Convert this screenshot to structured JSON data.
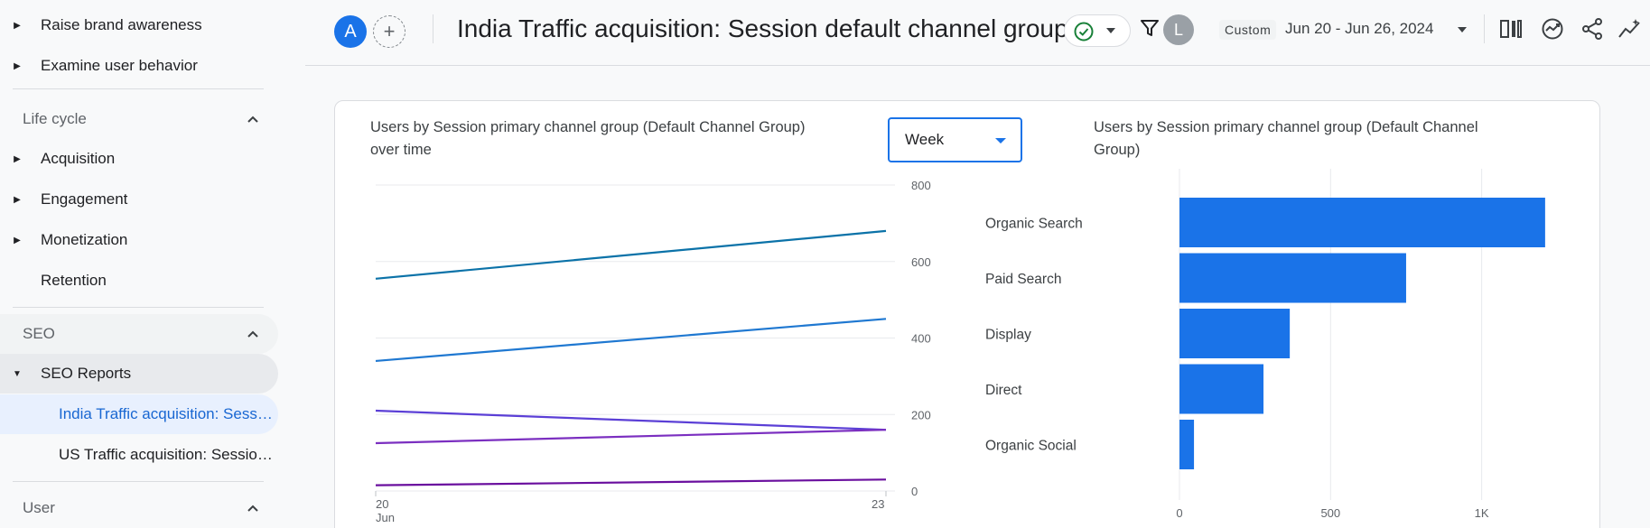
{
  "sidebar": {
    "top_items": [
      {
        "label": "Raise brand awareness"
      },
      {
        "label": "Examine user behavior"
      }
    ],
    "lifecycle": {
      "title": "Life cycle",
      "items": [
        {
          "label": "Acquisition"
        },
        {
          "label": "Engagement"
        },
        {
          "label": "Monetization"
        },
        {
          "label": "Retention"
        }
      ]
    },
    "seo": {
      "title": "SEO",
      "reports_label": "SEO Reports",
      "sub_items": [
        {
          "label": "India Traffic acquisition: Session default channel group",
          "active": true
        },
        {
          "label": "US Traffic acquisition: Session default channel group",
          "active": false
        }
      ]
    },
    "user": {
      "title": "User"
    }
  },
  "header": {
    "avatar_initial": "A",
    "add_symbol": "+",
    "title": "India Traffic acquisition: Session default channel group",
    "user_initial": "L",
    "custom_label": "Custom",
    "date_range": "Jun 20 - Jun 26, 2024",
    "icons": [
      "check-circle-icon",
      "filter-icon",
      "compare-icon",
      "insights-icon",
      "share-icon",
      "trend-icon"
    ]
  },
  "colors": {
    "accent": "#1a73e8",
    "active_bg": "#e8f0fe",
    "bar": "#1a73e8",
    "check": "#188038"
  },
  "line_chart": {
    "title_line1": "Users by Session primary channel group (Default Channel Group)",
    "title_line2": "over time",
    "granularity": "Week"
  },
  "bar_chart": {
    "title_line1": "Users by Session primary channel group (Default Channel",
    "title_line2": "Group)"
  },
  "chart_data": [
    {
      "type": "line",
      "title": "Users by Session primary channel group (Default Channel Group) over time",
      "x": [
        "20 Jun",
        "23"
      ],
      "x_tick_labels": [
        "20",
        "23"
      ],
      "x_sub_label": "Jun",
      "ylim": [
        0,
        800
      ],
      "y_ticks": [
        "0",
        "200",
        "400",
        "600",
        "800"
      ],
      "y_axis_side": "right",
      "grid": true,
      "series": [
        {
          "values": [
            555,
            680
          ],
          "color": "#0b72a8"
        },
        {
          "values": [
            340,
            450
          ],
          "color": "#1f78d1"
        },
        {
          "values": [
            210,
            160
          ],
          "color": "#5b3fd6"
        },
        {
          "values": [
            125,
            160
          ],
          "color": "#7b2fc0"
        },
        {
          "values": [
            15,
            30
          ],
          "color": "#6a0f9e"
        }
      ]
    },
    {
      "type": "bar",
      "orientation": "horizontal",
      "title": "Users by Session primary channel group (Default Channel Group)",
      "categories": [
        "Organic Search",
        "Paid Search",
        "Display",
        "Direct",
        "Organic Social"
      ],
      "values": [
        1210,
        750,
        365,
        278,
        48
      ],
      "xlim": [
        0,
        1300
      ],
      "x_ticks": [
        "0",
        "500",
        "1K"
      ],
      "x_tick_values": [
        0,
        500,
        1000
      ],
      "grid": true
    }
  ]
}
